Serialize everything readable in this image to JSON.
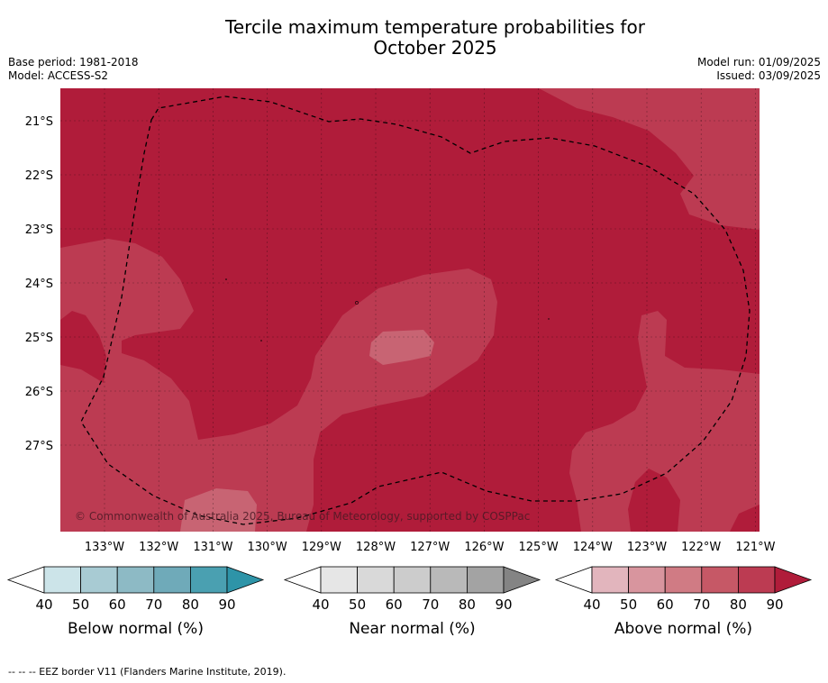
{
  "title_line1": "Tercile maximum temperature probabilities for",
  "title_line2": "October 2025",
  "base_period": "Base period: 1981-2018",
  "model": "Model: ACCESS-S2",
  "model_run": "Model run: 01/09/2025",
  "issued": "Issued: 03/09/2025",
  "copyright": "© Commonwealth of Australia 2025, Bureau of Meteorology, supported by COSPPac",
  "footer": "--  --  -- EEZ border V11 (Flanders Marine Institute, 2019).",
  "map": {
    "lat_labels": [
      "21°S",
      "22°S",
      "23°S",
      "24°S",
      "25°S",
      "26°S",
      "27°S"
    ],
    "lon_labels": [
      "133°W",
      "132°W",
      "131°W",
      "130°W",
      "129°W",
      "128°W",
      "127°W",
      "126°W",
      "125°W",
      "124°W",
      "123°W",
      "122°W",
      "121°W"
    ],
    "colors": {
      "dominant": "#b01c3a",
      "mid": "#bc3b52",
      "light": "#d0818a"
    }
  },
  "legends": [
    {
      "title": "Below normal (%)",
      "ticks": [
        "40",
        "50",
        "60",
        "70",
        "80",
        "90"
      ],
      "colors": [
        "#cce4e9",
        "#a8cbd3",
        "#8dbac5",
        "#6faab9",
        "#4aa0b1",
        "#2e94a8"
      ]
    },
    {
      "title": "Near normal (%)",
      "ticks": [
        "40",
        "50",
        "60",
        "70",
        "80",
        "90"
      ],
      "colors": [
        "#e6e6e6",
        "#d9d9d9",
        "#cccccc",
        "#b9b9b9",
        "#a3a3a3",
        "#848484"
      ]
    },
    {
      "title": "Above normal (%)",
      "ticks": [
        "40",
        "50",
        "60",
        "70",
        "80",
        "90"
      ],
      "colors": [
        "#e2b5bd",
        "#d8959e",
        "#d07b84",
        "#c65866",
        "#bc3b52",
        "#b01c3a"
      ]
    }
  ]
}
